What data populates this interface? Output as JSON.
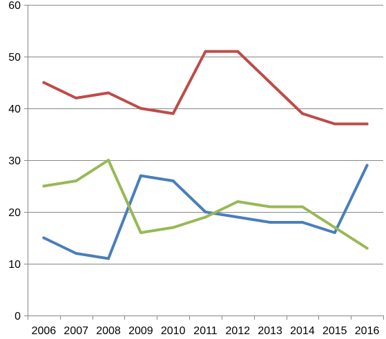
{
  "chart_data": {
    "type": "line",
    "categories": [
      "2006",
      "2007",
      "2008",
      "2009",
      "2010",
      "2011",
      "2012",
      "2013",
      "2014",
      "2015",
      "2016"
    ],
    "series": [
      {
        "color": "#4a7ebb",
        "values": [
          15,
          12,
          11,
          27,
          26,
          20,
          19,
          18,
          18,
          16,
          29
        ]
      },
      {
        "color": "#be4b48",
        "values": [
          45,
          42,
          43,
          40,
          39,
          51,
          51,
          45,
          39,
          37,
          37
        ]
      },
      {
        "color": "#98b954",
        "values": [
          25,
          26,
          30,
          16,
          17,
          19,
          22,
          21,
          21,
          17,
          13
        ]
      }
    ],
    "ylim": [
      0,
      60
    ],
    "yticks": [
      0,
      10,
      20,
      30,
      40,
      50,
      60
    ],
    "grid": true,
    "legend": "none"
  }
}
